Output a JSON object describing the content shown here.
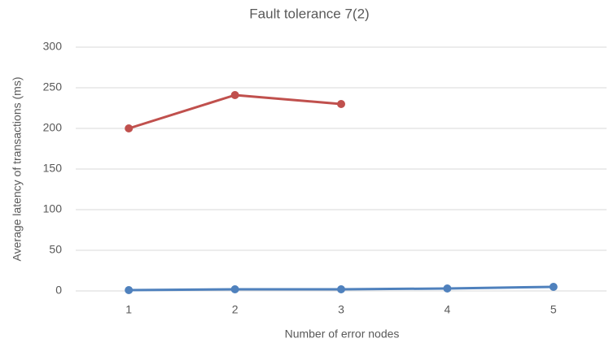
{
  "chart_data": {
    "type": "line",
    "title": "Fault tolerance 7(2)",
    "xlabel": "Number of error nodes",
    "ylabel": "Average latency of transactions (ms)",
    "x": [
      1,
      2,
      3,
      4,
      5
    ],
    "xlim": [
      0.5,
      5.5
    ],
    "xticks": [
      1,
      2,
      3,
      4,
      5
    ],
    "ylim": [
      0,
      300
    ],
    "yticks": [
      0,
      50,
      100,
      150,
      200,
      250,
      300
    ],
    "grid": true,
    "series": [
      {
        "color": "#c0504d",
        "values": [
          200,
          241,
          230,
          null,
          null
        ]
      },
      {
        "color": "#4f81bd",
        "values": [
          1,
          2,
          2,
          3,
          5
        ]
      }
    ]
  }
}
